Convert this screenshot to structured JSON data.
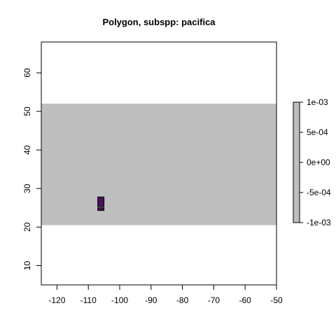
{
  "chart_data": {
    "type": "heatmap",
    "title": "Polygon, subspp: pacifica",
    "xlabel": "",
    "ylabel": "",
    "xlim": [
      -125,
      -50
    ],
    "ylim": [
      5,
      68
    ],
    "x_ticks": [
      -120,
      -110,
      -100,
      -90,
      -80,
      -70,
      -60,
      -50
    ],
    "y_ticks": [
      10,
      20,
      30,
      40,
      50,
      60
    ],
    "colors": {
      "region": "#bebebe",
      "cell": "#4b0f5a",
      "background": "#ffffff"
    },
    "region": {
      "x": [
        -125,
        -50
      ],
      "y": [
        20.5,
        52
      ]
    },
    "cells": [
      {
        "x": [
          -107,
          -105
        ],
        "y": [
          25.3,
          27.8
        ]
      },
      {
        "x": [
          -107,
          -105
        ],
        "y": [
          24.3,
          25.0
        ]
      }
    ],
    "legend": {
      "position": "right",
      "labels": [
        "1e-03",
        "5e-04",
        "0e+00",
        "-5e-04",
        "-1e-03"
      ],
      "range": [
        -0.001,
        0.001
      ],
      "fill": "#bebebe"
    }
  }
}
